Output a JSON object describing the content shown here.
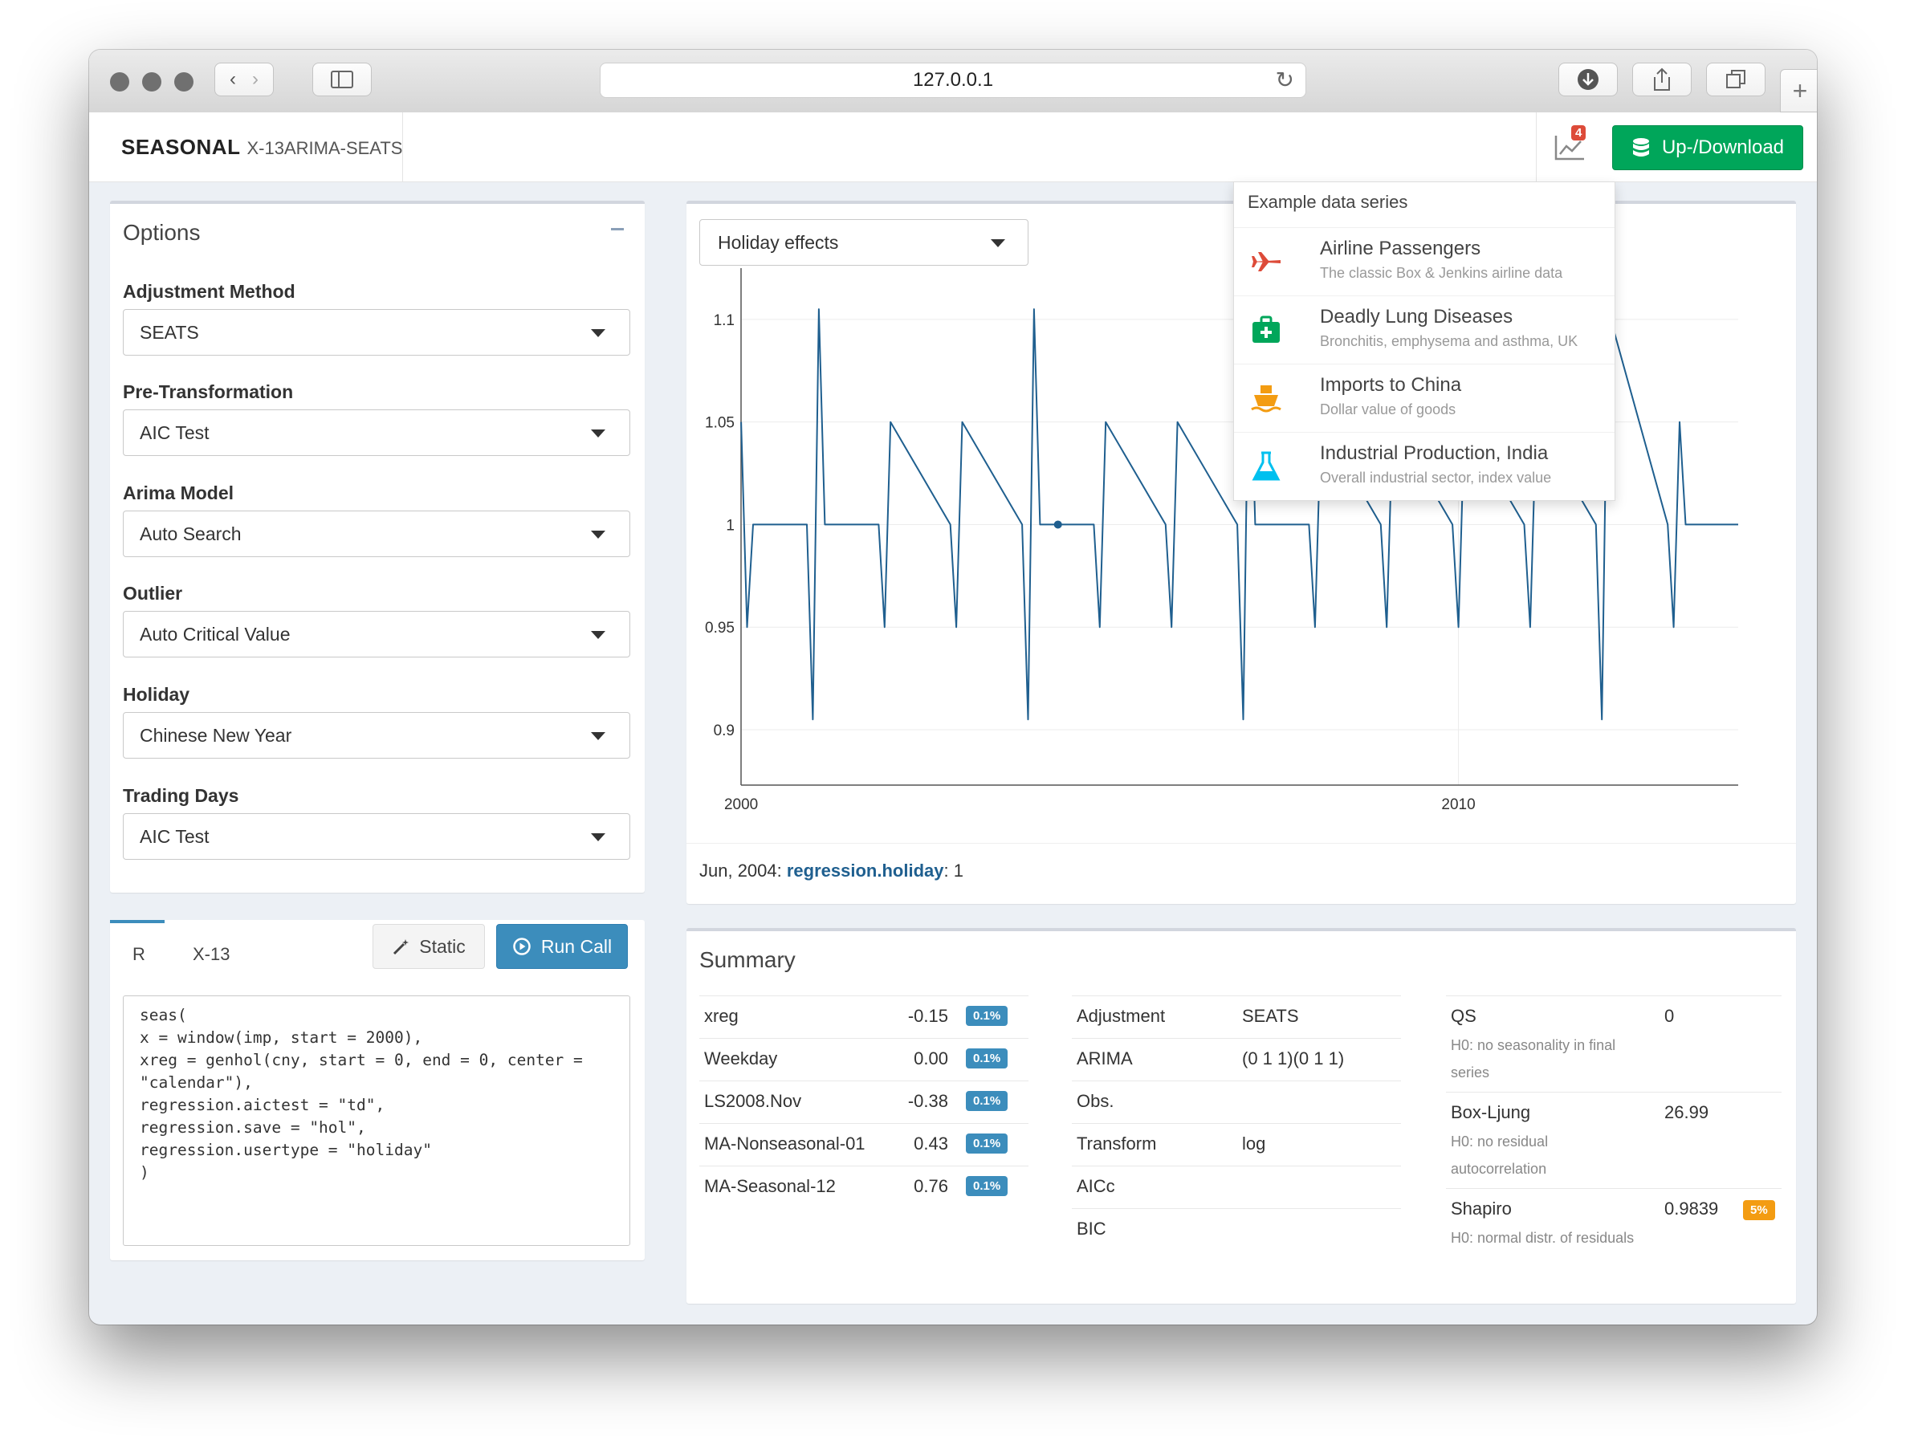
{
  "browser": {
    "url": "127.0.0.1"
  },
  "header": {
    "brand": "SEASONAL",
    "subtitle": "X-13ARIMA-SEATS",
    "notification_count": "4",
    "updown_label": "Up-/Download"
  },
  "options": {
    "title": "Options",
    "fields": [
      {
        "label": "Adjustment Method",
        "value": "SEATS"
      },
      {
        "label": "Pre-Transformation",
        "value": "AIC Test"
      },
      {
        "label": "Arima Model",
        "value": "Auto Search"
      },
      {
        "label": "Outlier",
        "value": "Auto Critical Value"
      },
      {
        "label": "Holiday",
        "value": "Chinese New Year"
      },
      {
        "label": "Trading Days",
        "value": "AIC Test"
      }
    ]
  },
  "code_panel": {
    "tabs": [
      "R",
      "X-13"
    ],
    "static_label": "Static",
    "run_label": "Run Call",
    "code": "seas(\nx = window(imp, start = 2000),\nxreg = genhol(cny, start = 0, end = 0, center =\n\"calendar\"),\nregression.aictest = \"td\",\nregression.save = \"hol\",\nregression.usertype = \"holiday\"\n)"
  },
  "chart_panel": {
    "selected_view": "Holiday effects",
    "tooltip": {
      "date": "Jun, 2004: ",
      "series": "regression.holiday",
      "value": ": 1"
    }
  },
  "chart_data": {
    "type": "line",
    "title": "",
    "xlabel": "",
    "ylabel": "",
    "xlim": [
      1999.999,
      2013.9
    ],
    "ylim": [
      0.873,
      1.125
    ],
    "x_ticks": [
      {
        "v": 2000,
        "label": "2000"
      },
      {
        "v": 2010,
        "label": "2010"
      }
    ],
    "y_ticks": [
      {
        "v": 0.9,
        "label": "0.9"
      },
      {
        "v": 0.95,
        "label": "0.95"
      },
      {
        "v": 1.0,
        "label": "1"
      },
      {
        "v": 1.05,
        "label": "1.05"
      },
      {
        "v": 1.1,
        "label": "1.1"
      }
    ],
    "grid": true,
    "line_color": "#1f5f8f",
    "series": [
      {
        "x": [
          2000.0,
          2000.083,
          2000.167,
          2000.917,
          2001.0,
          2001.083,
          2001.167,
          2001.917,
          2002.0,
          2002.083,
          2002.917,
          2003.0,
          2003.083,
          2003.917,
          2004.0,
          2004.083,
          2004.167,
          2004.917,
          2005.0,
          2005.083,
          2005.917,
          2006.0,
          2006.083,
          2006.917,
          2007.0,
          2007.083,
          2007.167,
          2007.917,
          2008.0,
          2008.083,
          2008.917,
          2009.0,
          2009.083,
          2009.917,
          2010.0,
          2010.083,
          2010.917,
          2011.0,
          2011.083,
          2011.917,
          2012.0,
          2012.083,
          2012.917,
          2013.0,
          2013.083,
          2013.167,
          2013.9
        ],
        "y": [
          1.05,
          0.95,
          1.0,
          1.0,
          0.905,
          1.105,
          1.0,
          1.0,
          0.95,
          1.05,
          1.0,
          0.95,
          1.05,
          1.0,
          0.905,
          1.105,
          1.0,
          1.0,
          0.95,
          1.05,
          1.0,
          0.95,
          1.05,
          1.0,
          0.905,
          1.105,
          1.0,
          1.0,
          0.95,
          1.05,
          1.0,
          0.95,
          1.05,
          1.0,
          0.95,
          1.05,
          1.0,
          0.95,
          1.05,
          1.0,
          0.905,
          1.105,
          1.0,
          0.95,
          1.05,
          1.0,
          1.0
        ]
      }
    ],
    "highlight_point": {
      "x": 2004.417,
      "y": 1.0
    }
  },
  "dropdown": {
    "header": "Example data series",
    "items": [
      {
        "name": "Airline Passengers",
        "desc": "The classic Box & Jenkins airline data",
        "icon": "plane-icon",
        "color": "#dd4b39"
      },
      {
        "name": "Deadly Lung Diseases",
        "desc": "Bronchitis, emphysema and asthma, UK",
        "icon": "medkit-icon",
        "color": "#00a65a"
      },
      {
        "name": "Imports to China",
        "desc": "Dollar value of goods",
        "icon": "ship-icon",
        "color": "#f39c12"
      },
      {
        "name": "Industrial Production, India",
        "desc": "Overall industrial sector, index value",
        "icon": "flask-icon",
        "color": "#00c0ef"
      }
    ]
  },
  "summary": {
    "title": "Summary",
    "coefs": [
      {
        "name": "xreg",
        "value": "-0.15",
        "badge": "0.1%"
      },
      {
        "name": "Weekday",
        "value": "0.00",
        "badge": "0.1%"
      },
      {
        "name": "LS2008.Nov",
        "value": "-0.38",
        "badge": "0.1%"
      },
      {
        "name": "MA-Nonseasonal-01",
        "value": "0.43",
        "badge": "0.1%"
      },
      {
        "name": "MA-Seasonal-12",
        "value": "0.76",
        "badge": "0.1%"
      }
    ],
    "stats": [
      {
        "name": "Adjustment",
        "value": "SEATS"
      },
      {
        "name": "ARIMA",
        "value": "(0 1 1)(0 1 1)"
      },
      {
        "name": "Obs.",
        "value": ""
      },
      {
        "name": "Transform",
        "value": "log"
      },
      {
        "name": "AICc",
        "value": ""
      },
      {
        "name": "BIC",
        "value": ""
      }
    ],
    "tests": [
      {
        "name": "QS",
        "value": "0",
        "note1": "H0: no seasonality in final",
        "note2": "series",
        "badge": ""
      },
      {
        "name": "Box-Ljung",
        "value": "26.99",
        "note1": "H0: no residual",
        "note2": "autocorrelation",
        "badge": ""
      },
      {
        "name": "Shapiro",
        "value": "0.9839",
        "note1": "H0: normal distr. of residuals",
        "note2": "",
        "badge": "5%"
      }
    ]
  }
}
